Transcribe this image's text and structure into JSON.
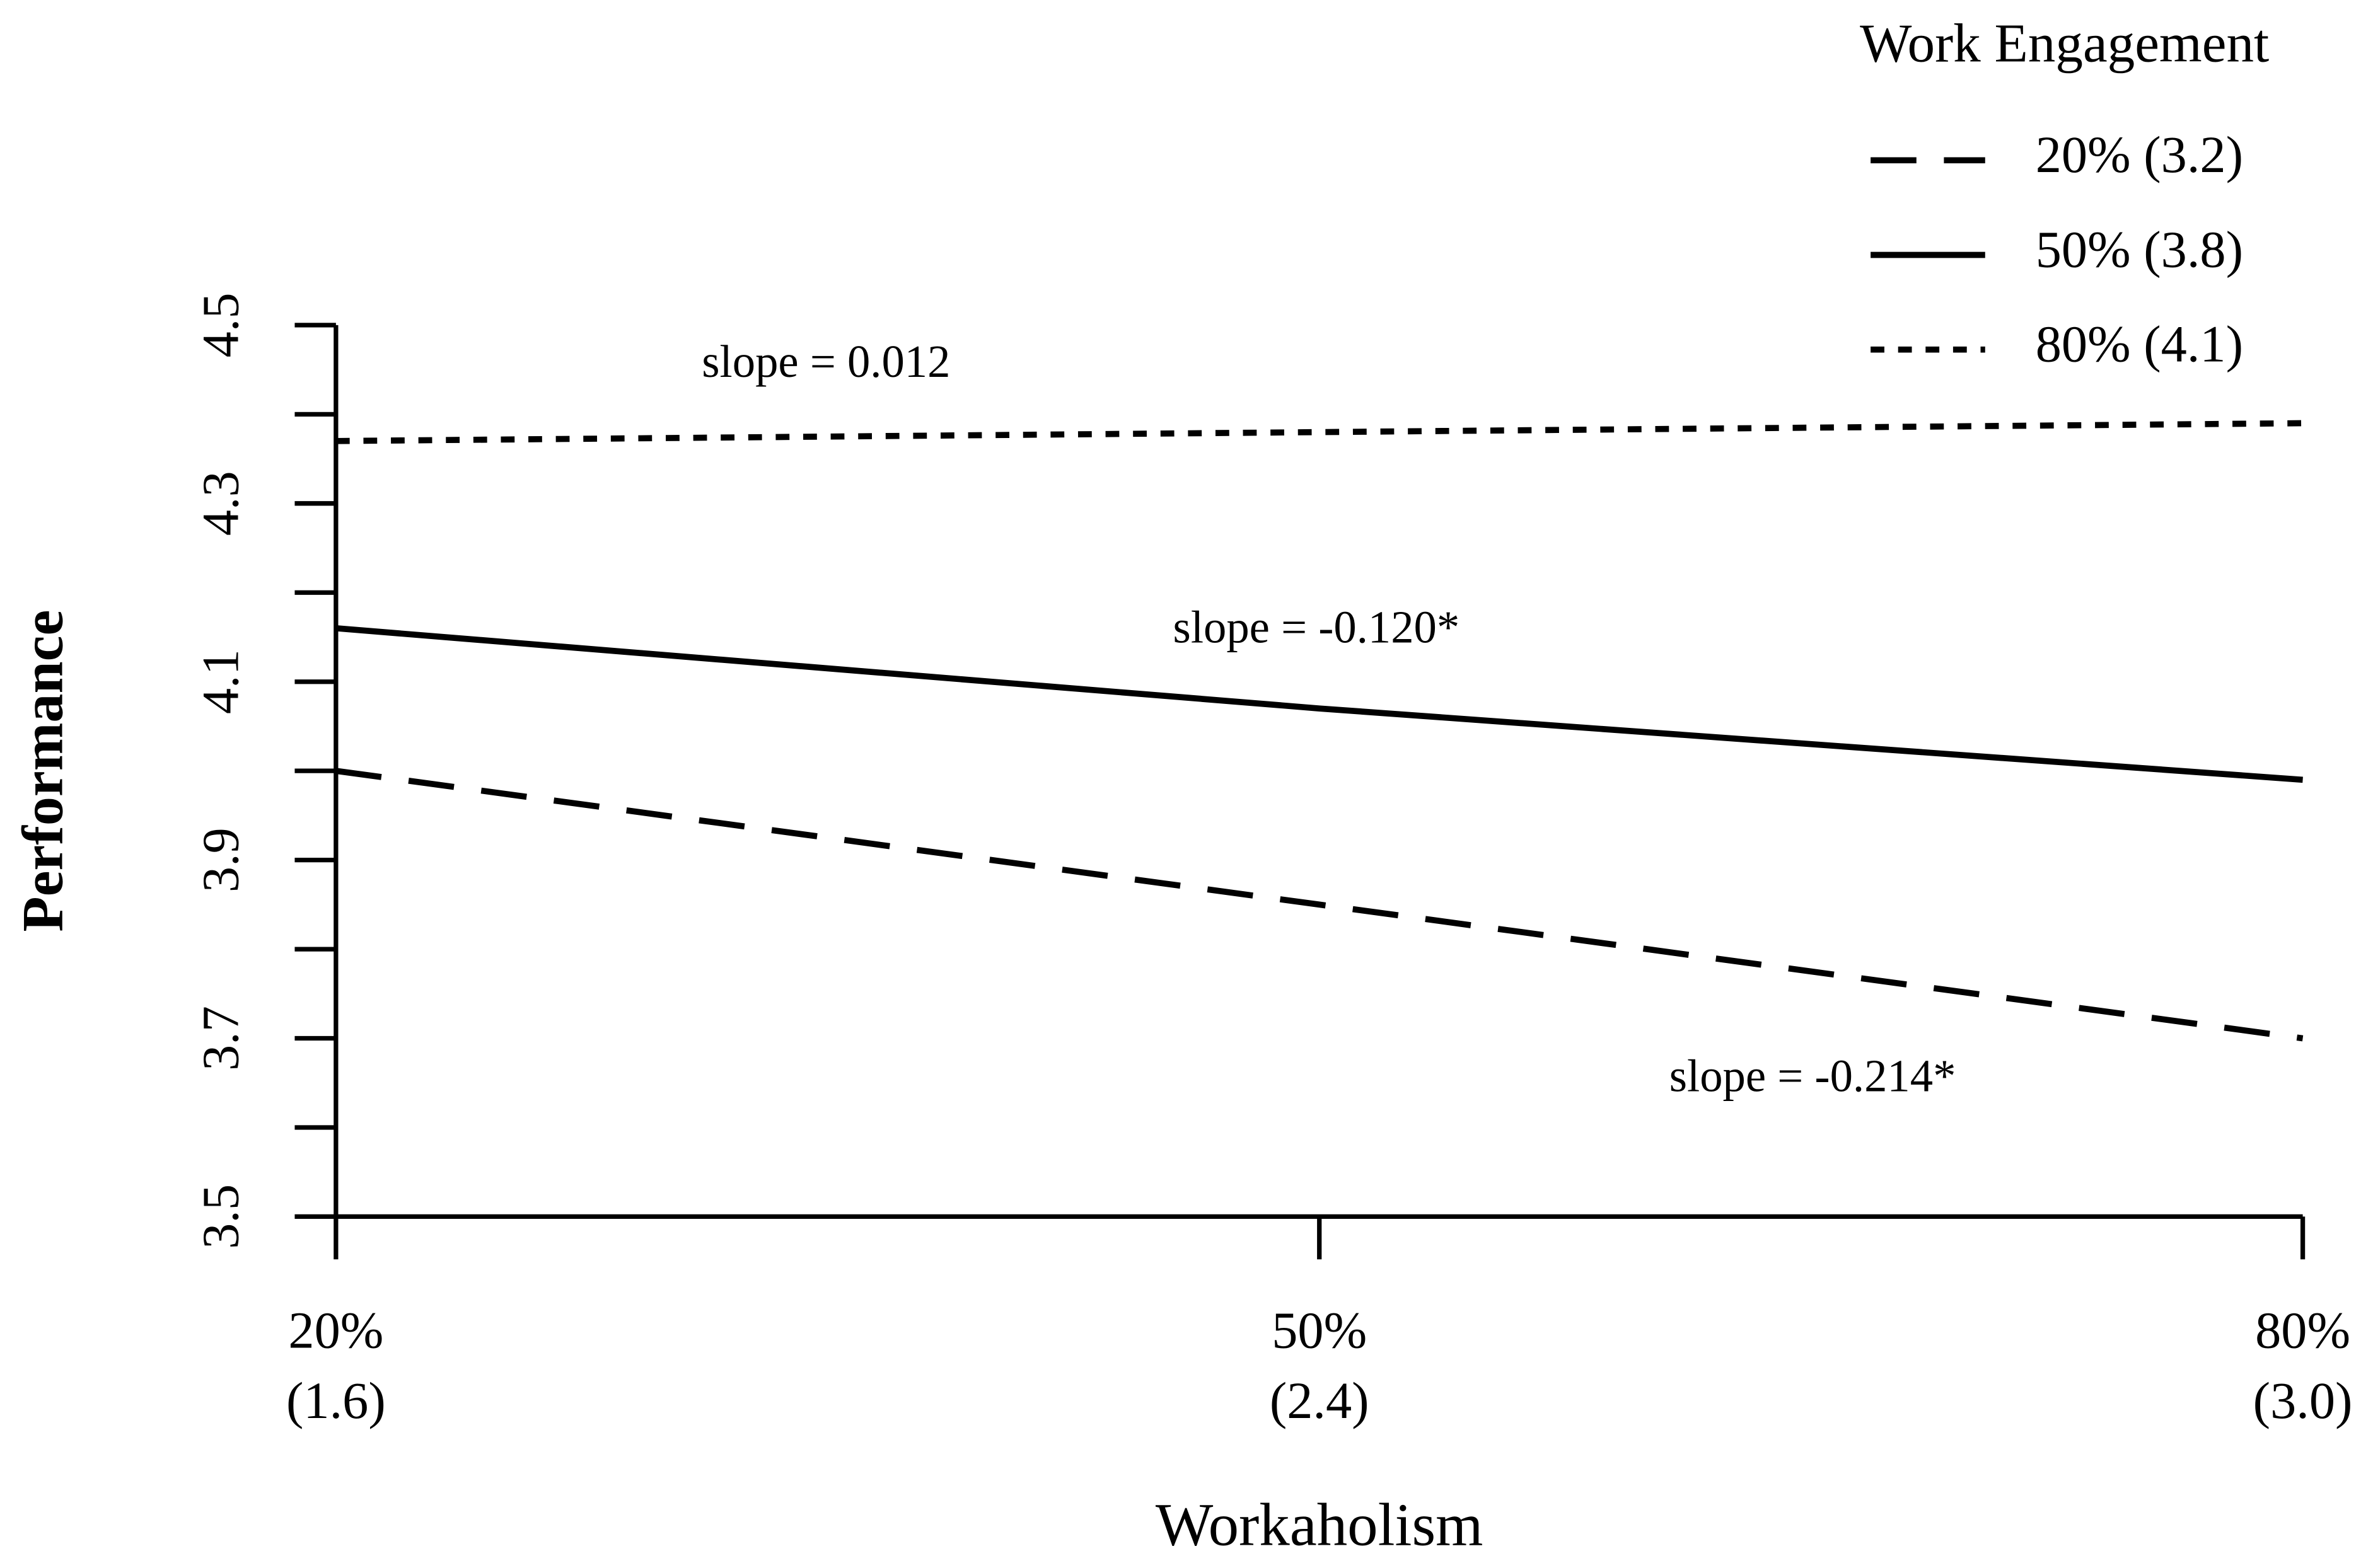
{
  "chart_data": {
    "type": "line",
    "categories": [
      "20%\n(1.6)",
      "50%\n(2.4)",
      "80%\n(3.0)"
    ],
    "xlabel": "Workaholism",
    "ylabel": "Performance",
    "legend_title": "Work Engagement",
    "legend_position": "top-right",
    "series": [
      {
        "name": "20% (3.2)",
        "color": "#000000",
        "dash": "dashed",
        "values": [
          4.0,
          3.85,
          3.7
        ]
      },
      {
        "name": "50% (3.8)",
        "color": "#000000",
        "dash": "solid",
        "values": [
          4.16,
          4.07,
          3.99
        ]
      },
      {
        "name": "80% (4.1)",
        "color": "#000000",
        "dash": "dotted",
        "values": [
          4.37,
          4.38,
          4.39
        ]
      }
    ],
    "annotations": [
      "slope = -0.214*",
      "slope = -0.120*",
      "slope = 0.012"
    ],
    "ylim": [
      3.5,
      4.5
    ],
    "yticks": [
      3.5,
      3.7,
      3.9,
      4.1,
      4.3,
      4.5
    ],
    "yminorticks": [
      3.6,
      3.8,
      4.0,
      4.2,
      4.4
    ],
    "grid": false
  }
}
